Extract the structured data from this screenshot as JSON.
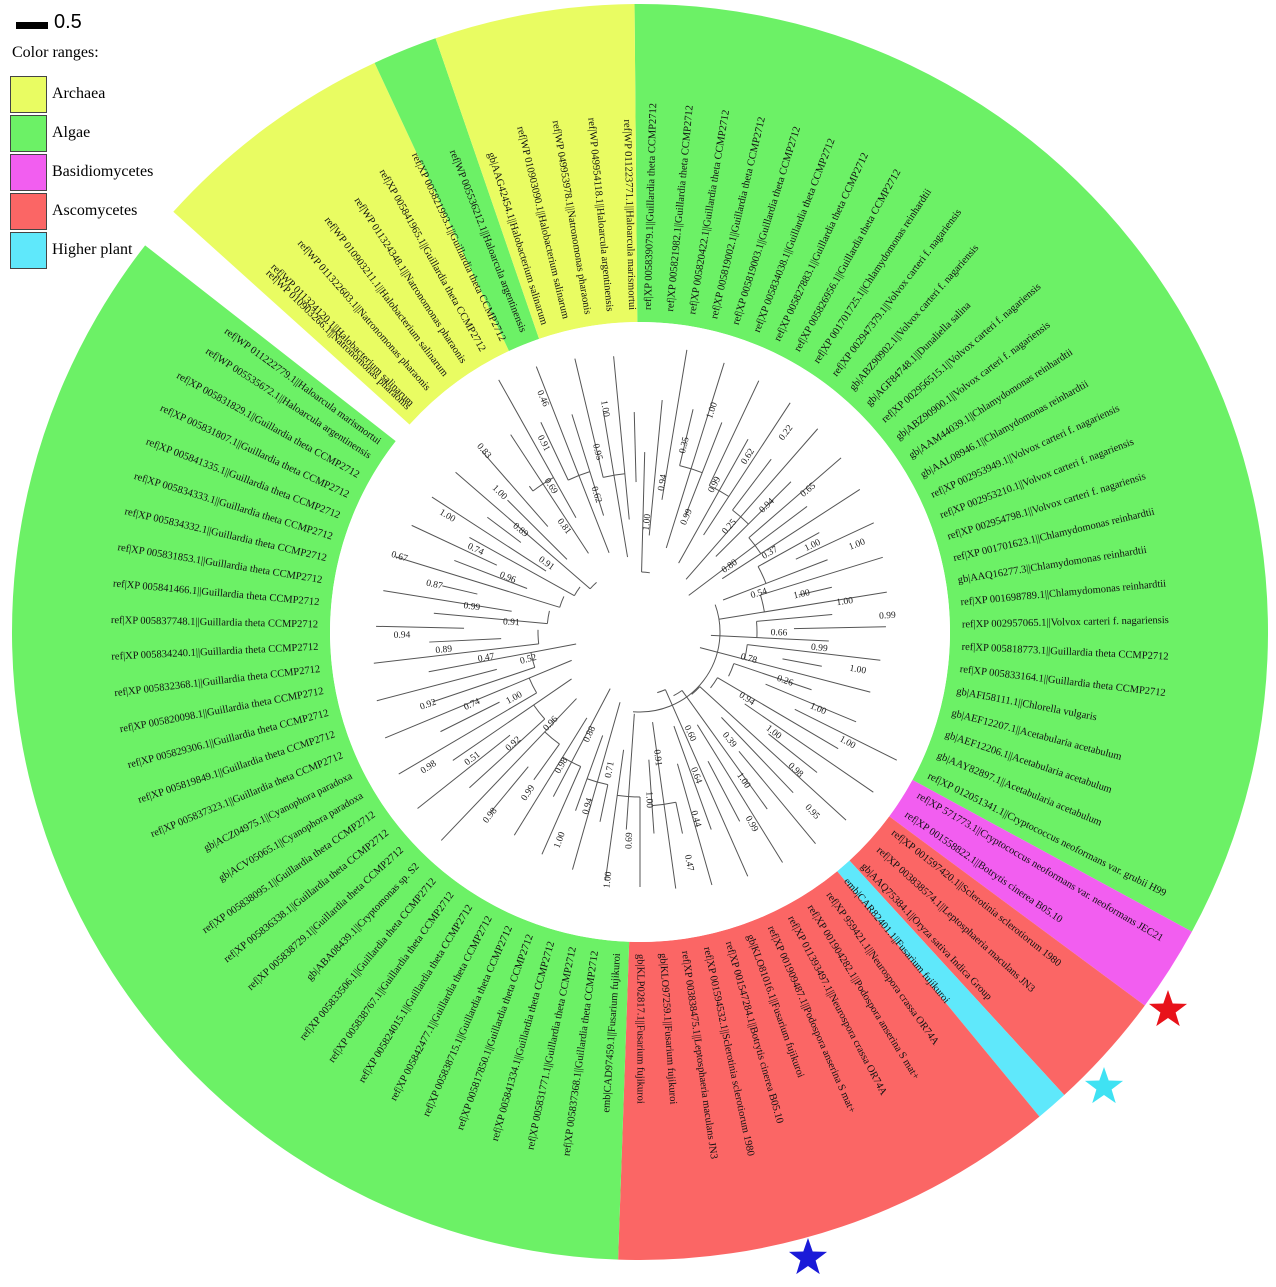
{
  "scale": {
    "label": "0.5"
  },
  "legend": {
    "title": "Color ranges:",
    "items": [
      {
        "label": "Archaea",
        "color": "#e9fc62"
      },
      {
        "label": "Algae",
        "color": "#6cf166"
      },
      {
        "label": "Basidiomycetes",
        "color": "#f25ef0"
      },
      {
        "label": "Ascomycetes",
        "color": "#fb6665"
      },
      {
        "label": "Higher plant",
        "color": "#5fe8fb"
      }
    ]
  },
  "markers": [
    {
      "name": "red-star",
      "color": "#e8121a"
    },
    {
      "name": "cyan-star",
      "color": "#3fe2f3"
    },
    {
      "name": "blue-star",
      "color": "#1a1ad8"
    }
  ],
  "sectors": [
    {
      "group": "Algae",
      "color": "#6cf166",
      "from": -90.5,
      "to": 28.5
    },
    {
      "group": "Basidiomycetes",
      "color": "#f25ef0",
      "from": 28.5,
      "to": 36.5
    },
    {
      "group": "Ascomycetes",
      "color": "#fb6665",
      "from": 36.5,
      "to": 47.5
    },
    {
      "group": "Higher plant",
      "color": "#5fe8fb",
      "from": 47.5,
      "to": 50.5
    },
    {
      "group": "Ascomycetes",
      "color": "#fb6665",
      "from": 50.5,
      "to": 92
    },
    {
      "group": "Algae",
      "color": "#6cf166",
      "from": 92,
      "to": 218
    },
    {
      "group": "Archaea",
      "color": "#e9fc62",
      "from": 222,
      "to": 245
    },
    {
      "group": "Algae",
      "color": "#6cf166",
      "from": 245,
      "to": 251
    },
    {
      "group": "Archaea",
      "color": "#e9fc62",
      "from": 251,
      "to": 269.5
    }
  ],
  "taxa": [
    "ref|XP 005839079.1||Guillardia theta CCMP2712",
    "ref|XP 005821982.1||Guillardia theta CCMP2712",
    "ref|XP 005820422.1||Guillardia theta CCMP2712",
    "ref|XP 005819002.1||Guillardia theta CCMP2712",
    "ref|XP 005819003.1||Guillardia theta CCMP2712",
    "ref|XP 005834038.1||Guillardia theta CCMP2712",
    "ref|XP 005827883.1||Guillardia theta CCMP2712",
    "ref|XP 005826956.1||Guillardia theta CCMP2712",
    "ref|XP 001701725.1||Chlamydomonas reinhardtii",
    "ref|XP 002947379.1||Volvox carteri f. nagariensis",
    "gb|ABZ90902.1||Volvox carteri f. nagariensis",
    "gb|AGF84748.1||Dunaliella salina",
    "ref|XP 002956515.1||Volvox carteri f. nagariensis",
    "gb|ABZ90900.1||Volvox carteri f. nagariensis",
    "gb|AAM44039.1||Chlamydomonas reinhardtii",
    "gb|AAL08946.1||Chlamydomonas reinhardtii",
    "ref|XP 002953949.1||Volvox carteri f. nagariensis",
    "ref|XP 002953210.1||Volvox carteri f. nagariensis",
    "ref|XP 002954798.1||Volvox carteri f. nagariensis",
    "ref|XP 001701623.1||Chlamydomonas reinhardtii",
    "gb|AAQ16277.3||Chlamydomonas reinhardtii",
    "ref|XP 001698789.1||Chlamydomonas reinhardtii",
    "ref|XP 002957065.1||Volvox carteri f. nagariensis",
    "ref|XP 005818773.1||Guillardia theta CCMP2712",
    "ref|XP 005833164.1||Guillardia theta CCMP2712",
    "gb|AFI58111.1||Chlorella vulgaris",
    "gb|AEF12207.1||Acetabularia acetabulum",
    "gb|AEF12206.1||Acetabularia acetabulum",
    "gb|AAY82897.1||Acetabularia acetabulum",
    "ref|XP 012051341.1||Cryptococcus neoformans var. grubii H99",
    "ref|XP 571773.1||Cryptococcus neoformans var. neoformans JEC21",
    "ref|XP 001558822.1||Botrytis cinerea B05.10",
    "ref|XP 001597420.1||Sclerotinia sclerotiorum 1980",
    "ref|XP 003838574.1||Leptosphaeria maculans JN3",
    "gb|AAQ75384.1||Oryza sativa Indica Group",
    "emb|CAR82401.1||Fusarium fujikuroi",
    "ref|XP 959421.1||Neurospora crassa OR74A",
    "ref|XP 001904282.1||Podospora anserina S mat+",
    "ref|XP 011393497.1||Neurospora crassa OR74A",
    "ref|XP 001909487.1||Podospora anserina S mat+",
    "gb|KLO81016.1||Fusarium fujikuroi",
    "ref|XP 001547284.1||Botrytis cinerea B05.10",
    "ref|XP 001594532.1||Sclerotinia sclerotiorum 1980",
    "ref|XP 003838475.1||Leptosphaeria maculans JN3",
    "gb|KLO97259.1||Fusarium fujikuroi",
    "gb|KLP02817.1||Fusarium fujikuroi",
    "emb|CAD97459.1||Fusarium fujikuroi",
    "ref|XP 005837368.1||Guillardia theta CCMP2712",
    "ref|XP 005831771.1||Guillardia theta CCMP2712",
    "ref|XP 005841334.1||Guillardia theta CCMP2712",
    "ref|XP 005817850.1||Guillardia theta CCMP2712",
    "ref|XP 005838715.1||Guillardia theta CCMP2712",
    "ref|XP 005842477.1||Guillardia theta CCMP2712",
    "ref|XP 005824015.1||Guillardia theta CCMP2712",
    "ref|XP 005838767.1||Guillardia theta CCMP2712",
    "ref|XP 005833506.1||Guillardia theta CCMP2712",
    "gb|ABA08439.1||Cryptomonas sp. S2",
    "ref|XP 005838729.1||Guillardia theta CCMP2712",
    "ref|XP 005836338.1||Guillardia theta CCMP2712",
    "ref|XP 005838095.1||Guillardia theta CCMP2712",
    "gb|ACV05065.1||Cyanophora paradoxa",
    "gb|ACZ04975.1||Cyanophora paradoxa",
    "ref|XP 005837323.1||Guillardia theta CCMP2712",
    "ref|XP 005819849.1||Guillardia theta CCMP2712",
    "ref|XP 005829306.1||Guillardia theta CCMP2712",
    "ref|XP 005820098.1||Guillardia theta CCMP2712",
    "ref|XP 005832368.1||Guillardia theta CCMP2712",
    "ref|XP 005834240.1||Guillardia theta CCMP2712",
    "ref|XP 005837748.1||Guillardia theta CCMP2712",
    "ref|XP 005841466.1||Guillardia theta CCMP2712",
    "ref|XP 005831853.1||Guillardia theta CCMP2712",
    "ref|XP 005834332.1||Guillardia theta CCMP2712",
    "ref|XP 005834333.1||Guillardia theta CCMP2712",
    "ref|XP 005841335.1||Guillardia theta CCMP2712",
    "ref|XP 005831807.1||Guillardia theta CCMP2712",
    "ref|XP 005831829.1||Guillardia theta CCMP2712",
    "ref|WP 005535672.1||Haloarcula argentinensis",
    "ref|WP 011222779.1||Haloarcula marismortui",
    "ref|WP 010903266.1||Natronomonas pharaonis",
    "ref|WP 011324120.1||Halobacterium salinarum",
    "ref|WP 011322603.1||Natronomonas pharaonis",
    "ref|WP 010903211.1||Halobacterium salinarum",
    "ref|WP 011324348.1||Natronomonas pharaonis",
    "ref|XP 005841965.1||Guillardia theta CCMP2712",
    "ref|XP 005821993.1||Guillardia theta CCMP2712",
    "ref|WP 005536212.1||Haloarcula argentinensis",
    "gb|AAG42454.1||Halobacterium salinarum",
    "ref|WP 010903090.1||Halobacterium salinarum",
    "ref|WP 049953978.1||Natronomonas pharaonis",
    "ref|WP 049954118.1||Haloarcula argentinensis",
    "ref|WP 011223771.1||Haloarcula marismortui"
  ],
  "support_values": [
    "1.00",
    "0.94",
    "0.35",
    "1.00",
    "0.99",
    "0.99",
    "0.62",
    "0.22",
    "0.25",
    "0.94",
    "0.65",
    "0.80",
    "0.37",
    "1.00",
    "1.00",
    "0.54",
    "1.00",
    "1.00",
    "0.99",
    "0.66",
    "0.99",
    "1.00",
    "0.78",
    "0.26",
    "1.00",
    "1.00",
    "0.94",
    "1.00",
    "0.98",
    "0.95",
    "0.39",
    "1.00",
    "0.99",
    "0.60",
    "0.64",
    "0.44",
    "0.47",
    "0.91",
    "1.00",
    "0.69",
    "1.00",
    "0.71",
    "0.94",
    "1.00",
    "0.88",
    "0.98",
    "0.99",
    "0.98",
    "0.96",
    "0.92",
    "0.51",
    "0.98",
    "1.00",
    "0.74",
    "0.92",
    "0.52",
    "0.47",
    "0.89",
    "0.94",
    "0.91",
    "0.99",
    "0.87",
    "0.67",
    "0.96",
    "0.74",
    "1.00",
    "0.91",
    "0.89",
    "1.00",
    "0.83",
    "0.81",
    "0.69",
    "0.91",
    "0.46",
    "0.62",
    "0.95",
    "1.00"
  ]
}
